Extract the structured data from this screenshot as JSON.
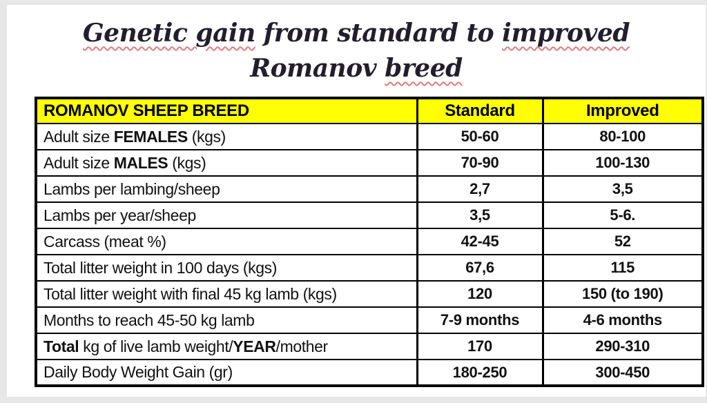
{
  "title": {
    "lines": [
      {
        "segments": [
          {
            "text": "Genetic gain",
            "underline": true
          },
          {
            "text": " from standard to ",
            "underline": false
          },
          {
            "text": "improved",
            "underline": true
          }
        ]
      },
      {
        "segments": [
          {
            "text": "Romanov ",
            "underline": false
          },
          {
            "text": "breed",
            "underline": true
          }
        ]
      }
    ]
  },
  "colors": {
    "header_bg": "#ffff00",
    "underline": "#e07b7b",
    "title_text": "#221e2d",
    "page_bg": "#ffffff",
    "canvas_bg": "#e7e7e7",
    "border": "#000000"
  },
  "table": {
    "header": {
      "breed": "ROMANOV SHEEP BREED",
      "standard": "Standard",
      "improved": "Improved"
    },
    "rows": [
      {
        "label": [
          {
            "text": "Adult size ",
            "bold": false
          },
          {
            "text": "FEMALES",
            "bold": true
          },
          {
            "text": " (kgs)",
            "bold": false
          }
        ],
        "standard": "50-60",
        "improved": "80-100"
      },
      {
        "label": [
          {
            "text": "Adult size ",
            "bold": false
          },
          {
            "text": "MALES",
            "bold": true
          },
          {
            "text": " (kgs)",
            "bold": false
          }
        ],
        "standard": "70-90",
        "improved": "100-130"
      },
      {
        "label": [
          {
            "text": "Lambs per lambing/sheep",
            "bold": false
          }
        ],
        "standard": "2,7",
        "improved": "3,5"
      },
      {
        "label": [
          {
            "text": "Lambs per year/sheep",
            "bold": false
          }
        ],
        "standard": "3,5",
        "improved": "5-6."
      },
      {
        "label": [
          {
            "text": "Carcass (meat %)",
            "bold": false
          }
        ],
        "standard": "42-45",
        "improved": "52"
      },
      {
        "label": [
          {
            "text": "Total litter weight in 100 days (kgs)",
            "bold": false
          }
        ],
        "standard": "67,6",
        "improved": "115"
      },
      {
        "label": [
          {
            "text": "Total litter weight with final 45 kg lamb (kgs)",
            "bold": false
          }
        ],
        "standard": "120",
        "improved": "150 (to 190)"
      },
      {
        "label": [
          {
            "text": "Months to reach 45-50 kg lamb",
            "bold": false
          }
        ],
        "standard": "7-9 months",
        "improved": "4-6 months"
      },
      {
        "label": [
          {
            "text": "Total",
            "bold": true
          },
          {
            "text": " kg of live lamb weight/",
            "bold": false
          },
          {
            "text": "YEAR",
            "bold": true
          },
          {
            "text": "/mother",
            "bold": false
          }
        ],
        "standard": "170",
        "improved": "290-310"
      },
      {
        "label": [
          {
            "text": "Daily Body Weight Gain (gr)",
            "bold": false
          }
        ],
        "standard": "180-250",
        "improved": "300-450"
      }
    ]
  }
}
